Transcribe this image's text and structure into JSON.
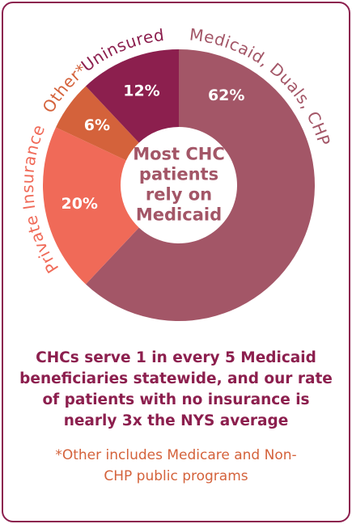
{
  "chart_data": {
    "type": "donut",
    "categories": [
      "Medicaid, Duals, CHP",
      "Private Insurance",
      "Other*",
      "Uninsured"
    ],
    "values": [
      62,
      20,
      6,
      12
    ],
    "value_labels": [
      "62%",
      "20%",
      "6%",
      "12%"
    ],
    "colors": [
      "#a35667",
      "#f06a58",
      "#d4623b",
      "#8c1f4e"
    ],
    "center_text": [
      "Most CHC",
      "patients",
      "rely on",
      "Medicaid"
    ],
    "caption": "CHCs serve 1 in every 5 Medicaid beneficiaries statewide, and our rate of patients with no insurance is nearly 3x the NYS average",
    "footnote": "*Other includes Medicare and Non-CHP public programs"
  }
}
